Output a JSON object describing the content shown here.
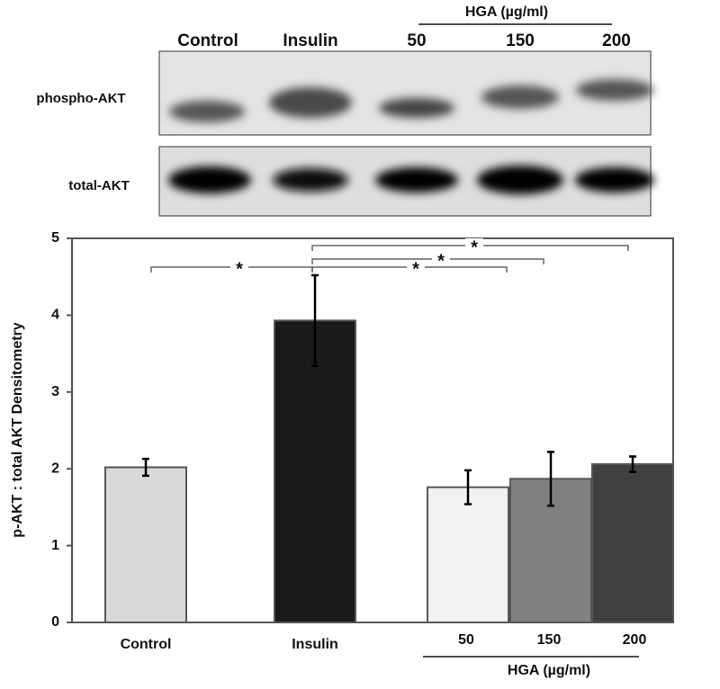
{
  "blot": {
    "row_labels": [
      "phospho-AKT",
      "total-AKT"
    ],
    "lane_labels": [
      "Control",
      "Insulin",
      "50",
      "150",
      "200"
    ],
    "group_label": "HGA (µg/ml)"
  },
  "chart_data": {
    "type": "bar",
    "ylabel": "p-AKT : total AKT Densitometry",
    "categories": [
      "Control",
      "Insulin",
      "50",
      "150",
      "200"
    ],
    "values": [
      2.02,
      3.93,
      1.76,
      1.87,
      2.06
    ],
    "errors": [
      0.11,
      0.59,
      0.22,
      0.35,
      0.1
    ],
    "colors": [
      "#d9d9d9",
      "#1a1a1a",
      "#f2f2f2",
      "#808080",
      "#404040"
    ],
    "group_label": "HGA (µg/ml)",
    "annotations": [
      "*",
      "*",
      "*",
      "*"
    ],
    "ylim": [
      0,
      5
    ],
    "yticks": [
      0,
      1,
      2,
      3,
      4,
      5
    ]
  }
}
